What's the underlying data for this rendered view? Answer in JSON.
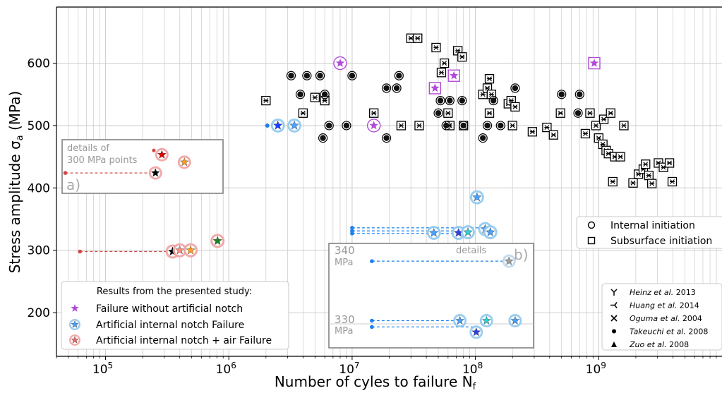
{
  "chart_data": {
    "type": "scatter",
    "x_scale": "log",
    "y_scale": "linear",
    "xlim": [
      40000,
      10000000000
    ],
    "ylim": [
      130,
      690
    ],
    "grid": true,
    "xlabel": "Number of cyles to failure N",
    "xlabel_sub": "f",
    "ylabel_prefix": "Stress amplitude σ",
    "ylabel_sub": "a",
    "ylabel_suffix": " (MPa)",
    "xticks": [
      {
        "value": 100000,
        "base": "10",
        "exp": "5"
      },
      {
        "value": 1000000,
        "base": "10",
        "exp": "6"
      },
      {
        "value": 10000000,
        "base": "10",
        "exp": "7"
      },
      {
        "value": 100000000,
        "base": "10",
        "exp": "8"
      },
      {
        "value": 1000000000,
        "base": "10",
        "exp": "9"
      }
    ],
    "yticks": [
      200,
      300,
      400,
      500,
      600
    ],
    "literature": {
      "internal": [
        [
          3200000,
          580
        ],
        [
          3800000,
          550
        ],
        [
          4300000,
          580
        ],
        [
          5500000,
          580
        ],
        [
          6000000,
          550
        ],
        [
          5800000,
          480
        ],
        [
          6500000,
          500
        ],
        [
          9000000,
          500
        ],
        [
          10000000,
          580
        ],
        [
          19000000,
          480
        ],
        [
          19000000,
          560
        ],
        [
          23000000,
          560
        ],
        [
          24000000,
          580
        ],
        [
          50000000,
          520
        ],
        [
          52000000,
          540
        ],
        [
          58000000,
          500
        ],
        [
          62000000,
          540
        ],
        [
          78000000,
          540
        ],
        [
          80000000,
          500
        ],
        [
          115000000,
          480
        ],
        [
          125000000,
          500
        ],
        [
          140000000,
          540
        ],
        [
          160000000,
          500
        ],
        [
          210000000,
          560
        ],
        [
          500000000,
          550
        ],
        [
          680000000,
          520
        ],
        [
          700000000,
          550
        ]
      ],
      "subsurface": [
        [
          2000000,
          540
        ],
        [
          4000000,
          520
        ],
        [
          5000000,
          545
        ],
        [
          6000000,
          540
        ],
        [
          15000000,
          520
        ],
        [
          25000000,
          500
        ],
        [
          30000000,
          640
        ],
        [
          34000000,
          640
        ],
        [
          35000000,
          500
        ],
        [
          48000000,
          625
        ],
        [
          53000000,
          585
        ],
        [
          56000000,
          600
        ],
        [
          60000000,
          520
        ],
        [
          62000000,
          500
        ],
        [
          72000000,
          620
        ],
        [
          78000000,
          610
        ],
        [
          80000000,
          500
        ],
        [
          115000000,
          550
        ],
        [
          125000000,
          560
        ],
        [
          130000000,
          575
        ],
        [
          130000000,
          520
        ],
        [
          135000000,
          550
        ],
        [
          185000000,
          535
        ],
        [
          195000000,
          540
        ],
        [
          200000000,
          500
        ],
        [
          210000000,
          530
        ],
        [
          290000000,
          490
        ],
        [
          380000000,
          497
        ],
        [
          430000000,
          485
        ],
        [
          490000000,
          520
        ],
        [
          780000000,
          487
        ],
        [
          850000000,
          520
        ],
        [
          950000000,
          500
        ],
        [
          1000000000,
          480
        ],
        [
          1080000000,
          470
        ],
        [
          1100000000,
          510
        ],
        [
          1150000000,
          460
        ],
        [
          1200000000,
          455
        ],
        [
          1250000000,
          520
        ],
        [
          1300000000,
          410
        ],
        [
          1350000000,
          450
        ],
        [
          1500000000,
          450
        ],
        [
          1600000000,
          500
        ],
        [
          1900000000,
          408
        ],
        [
          2100000000,
          422
        ],
        [
          2300000000,
          430
        ],
        [
          2400000000,
          438
        ],
        [
          2550000000,
          420
        ],
        [
          2700000000,
          407
        ],
        [
          3050000000,
          440
        ],
        [
          3350000000,
          433
        ],
        [
          3750000000,
          440
        ],
        [
          3950000000,
          410
        ]
      ]
    },
    "presented_study": {
      "no_notch": [
        {
          "x": 8000000,
          "y": 600
        },
        {
          "x": 15000000,
          "y": 500
        },
        {
          "x": 47000000,
          "y": 560
        },
        {
          "x": 67000000,
          "y": 580
        },
        {
          "x": 920000000,
          "y": 600
        }
      ],
      "internal_notch": {
        "points": [
          {
            "x": 2500000,
            "y": 500,
            "color": "#1a40ff"
          },
          {
            "x": 3400000,
            "y": 500,
            "color": "#4aa0ff"
          },
          {
            "x": 46000000,
            "y": 328,
            "color": "#4aa0ff"
          },
          {
            "x": 73000000,
            "y": 328,
            "color": "#3040e0"
          },
          {
            "x": 87000000,
            "y": 329,
            "color": "#30d0d0"
          },
          {
            "x": 103000000,
            "y": 385,
            "color": "#4aa0ff"
          },
          {
            "x": 120000000,
            "y": 334,
            "color": "#4aa0ff"
          },
          {
            "x": 132000000,
            "y": 329,
            "color": "#4aa0ff"
          }
        ],
        "dashed_lines": [
          {
            "x0": 10000000,
            "x1": 130000000,
            "y": 336
          },
          {
            "x0": 10000000,
            "x1": 73000000,
            "y": 331
          },
          {
            "x0": 10000000,
            "x1": 73000000,
            "y": 327
          }
        ],
        "left_dot": {
          "x": 2050000,
          "y": 500
        }
      },
      "internal_notch_air": {
        "points": [
          {
            "x": 350000,
            "y": 298,
            "color": "#000000"
          },
          {
            "x": 400000,
            "y": 300,
            "color": "#ff8a7a"
          },
          {
            "x": 490000,
            "y": 300,
            "color": "#ff9a20"
          },
          {
            "x": 810000,
            "y": 315,
            "color": "#208020"
          }
        ],
        "dashed_lines": [
          {
            "x0": 62000,
            "x1": 350000,
            "y": 298
          }
        ]
      }
    },
    "inset_a": {
      "label": "a)",
      "title_lines": [
        "details of",
        "300 MPa points"
      ],
      "points": [
        {
          "u": 0.62,
          "v": 0.72,
          "color": "#e00000"
        },
        {
          "u": 0.76,
          "v": 0.58,
          "color": "#ff9a20"
        },
        {
          "u": 0.58,
          "v": 0.38,
          "color": "#000000"
        }
      ],
      "dot": {
        "u": 0.57,
        "v": 0.8
      },
      "dashed": {
        "u0": 0.02,
        "u1": 0.58,
        "v": 0.38
      }
    },
    "inset_b": {
      "label": "b)",
      "title": "details",
      "label_340": "340",
      "label_340_unit": "MPa",
      "label_330": "330",
      "label_330_unit": "MPa",
      "points": [
        {
          "u": 0.88,
          "v": 0.83,
          "color": "#a0a0a0"
        },
        {
          "u": 0.64,
          "v": 0.26,
          "color": "#4aa0ff"
        },
        {
          "u": 0.77,
          "v": 0.26,
          "color": "#30d0d0"
        },
        {
          "u": 0.72,
          "v": 0.15,
          "color": "#3040e0"
        },
        {
          "u": 0.91,
          "v": 0.26,
          "color": "#4aa0ff"
        }
      ],
      "dashed": [
        {
          "u0": 0.21,
          "u1": 0.88,
          "v": 0.83
        },
        {
          "u0": 0.21,
          "u1": 0.64,
          "v": 0.26
        },
        {
          "u0": 0.21,
          "u1": 0.72,
          "v": 0.2
        }
      ]
    },
    "legend_initiation": {
      "items": [
        "Internal initiation",
        "Subsurface initiation"
      ]
    },
    "legend_study": {
      "title": "Results from the presented study:",
      "items": [
        "Failure without artificial notch",
        "Artificial internal notch Failure",
        "Artificial internal notch + air Failure"
      ]
    },
    "legend_authors": {
      "items": [
        {
          "name": "Heinz et al.",
          "year": "2013",
          "marker": "Y"
        },
        {
          "name": "Huang et al.",
          "year": "2014",
          "marker": "tri_left"
        },
        {
          "name": "Oguma et al.",
          "year": "2004",
          "marker": "x"
        },
        {
          "name": "Takeuchi et al.",
          "year": "2008",
          "marker": "dot"
        },
        {
          "name": "Zuo et al.",
          "year": "2008",
          "marker": "triangle"
        }
      ]
    },
    "colors": {
      "purple": "#b04ad8",
      "blue_halo": "#8fc8f0",
      "red_halo": "#f0a0a0",
      "red_dot": "#d04848",
      "blue_dot": "#1a80f0",
      "grid": "#d0d0d0"
    }
  }
}
